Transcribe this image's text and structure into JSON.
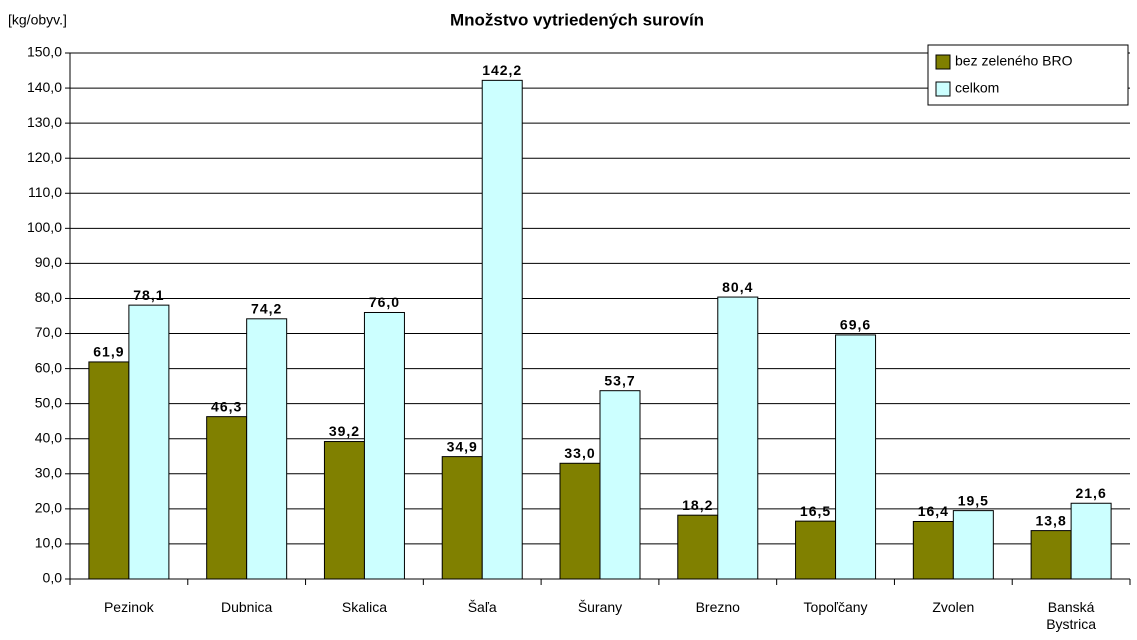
{
  "chart_data": {
    "type": "bar",
    "title": "Množstvo vytriedených surovín",
    "y_axis_label": "[kg/obyv.]",
    "categories": [
      "Pezinok",
      "Dubnica",
      "Skalica",
      "Šaľa",
      "Šurany",
      "Brezno",
      "Topoľčany",
      "Zvolen",
      "Banská Bystrica"
    ],
    "series": [
      {
        "name": "bez zeleného BRO",
        "color": "#808000",
        "values": [
          61.9,
          46.3,
          39.2,
          34.9,
          33.0,
          18.2,
          16.5,
          16.4,
          13.8
        ],
        "value_labels": [
          "61,9",
          "46,3",
          "39,2",
          "34,9",
          "33,0",
          "18,2",
          "16,5",
          "16,4",
          "13,8"
        ]
      },
      {
        "name": "celkom",
        "color": "#ccffff",
        "values": [
          78.1,
          74.2,
          76.0,
          142.2,
          53.7,
          80.4,
          69.6,
          19.5,
          21.6
        ],
        "value_labels": [
          "78,1",
          "74,2",
          "76,0",
          "142,2",
          "53,7",
          "80,4",
          "69,6",
          "19,5",
          "21,6"
        ]
      }
    ],
    "ylim": [
      0,
      150
    ],
    "yticks": [
      {
        "value": 0,
        "label": "0,0"
      },
      {
        "value": 10,
        "label": "10,0"
      },
      {
        "value": 20,
        "label": "20,0"
      },
      {
        "value": 30,
        "label": "30,0"
      },
      {
        "value": 40,
        "label": "40,0"
      },
      {
        "value": 50,
        "label": "50,0"
      },
      {
        "value": 60,
        "label": "60,0"
      },
      {
        "value": 70,
        "label": "70,0"
      },
      {
        "value": 80,
        "label": "80,0"
      },
      {
        "value": 90,
        "label": "90,0"
      },
      {
        "value": 100,
        "label": "100,0"
      },
      {
        "value": 110,
        "label": "110,0"
      },
      {
        "value": 120,
        "label": "120,0"
      },
      {
        "value": 130,
        "label": "130,0"
      },
      {
        "value": 140,
        "label": "140,0"
      },
      {
        "value": 150,
        "label": "150,0"
      }
    ],
    "grid": true,
    "legend": "top-right"
  }
}
